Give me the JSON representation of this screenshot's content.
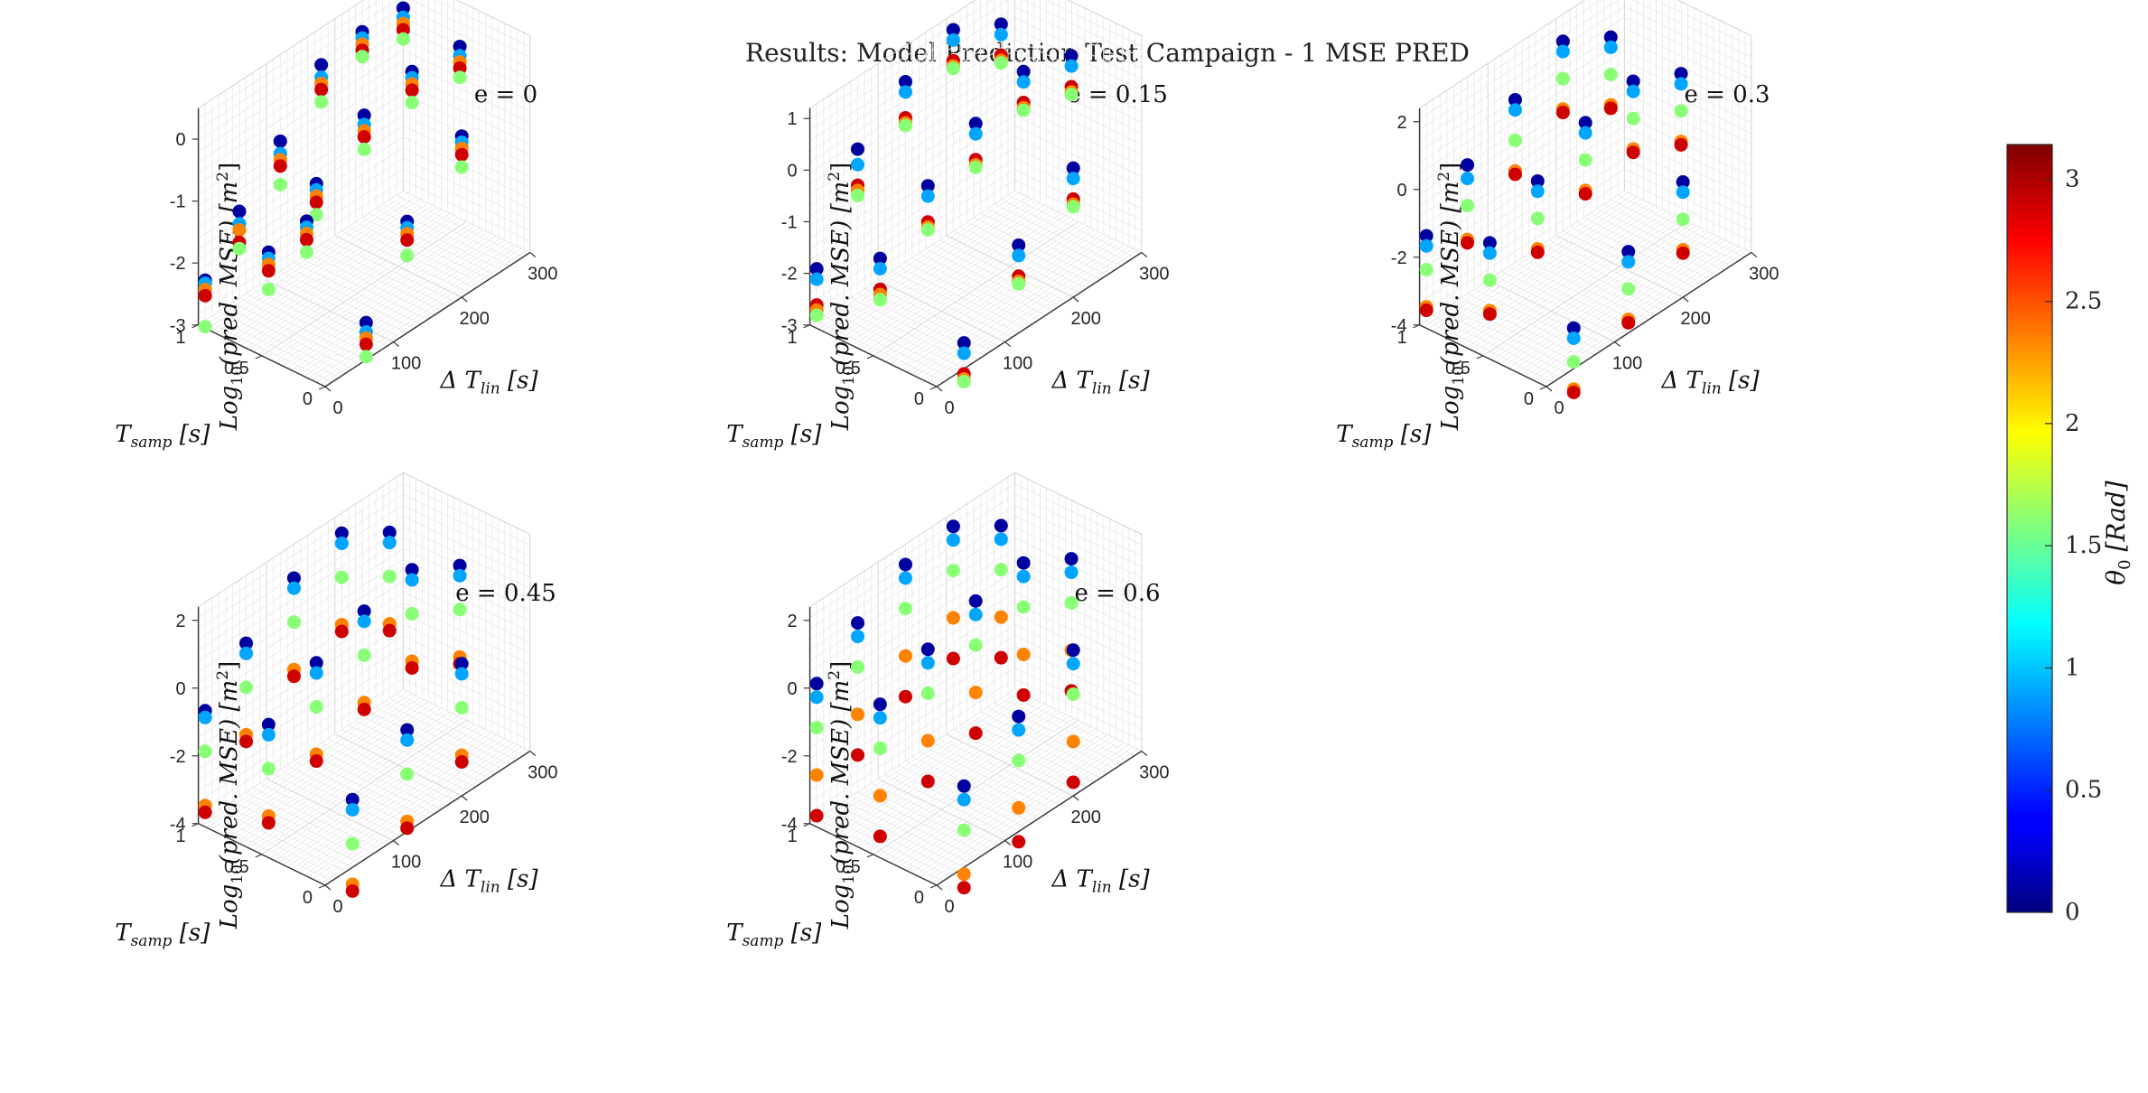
{
  "figure": {
    "title": "Results: Model Prediction Test Campaign - 1 MSE PRED",
    "axis_labels": {
      "z_prefix": "Log",
      "z_sub": "10",
      "z_body": "(pred. MSE) [m",
      "z_sup": "2",
      "z_close": "]",
      "x_prefix": "Δ T",
      "x_sub": "lin",
      "x_suffix": " [s]",
      "y_prefix": "T",
      "y_sub": "samp",
      "y_suffix": " [s]"
    }
  },
  "colorbar": {
    "label_prefix": "θ",
    "label_sub": "0",
    "label_suffix": " [Rad]",
    "ticks": [
      0,
      0.5,
      1,
      1.5,
      2,
      2.5,
      3
    ],
    "tick_labels": [
      "0",
      "0.5",
      "1",
      "1.5",
      "2",
      "2.5",
      "3"
    ],
    "range": [
      0,
      3.1416
    ],
    "colormap": "jet"
  },
  "chart_data": [
    {
      "type": "scatter3d",
      "title": "e = 0",
      "xlim": [
        0,
        300
      ],
      "ylim": [
        0,
        1
      ],
      "zlim": [
        -3,
        0.5
      ],
      "xticks": [
        0,
        100,
        200,
        300
      ],
      "xtick_labels": [
        "0",
        "100",
        "200",
        "300"
      ],
      "yticks": [
        0,
        0.5,
        1
      ],
      "ytick_labels": [
        "0",
        "0.5",
        "1"
      ],
      "zticks": [
        -3,
        -2,
        -1,
        0
      ],
      "ztick_labels": [
        "-3",
        "-2",
        "-1",
        "0"
      ],
      "grid": true,
      "groups": [
        {
          "x": 10,
          "y": 1.0,
          "z": [
            -2.35,
            -2.4,
            -2.5,
            -2.6,
            -3.1
          ]
        },
        {
          "x": 60,
          "y": 1.0,
          "z": [
            -1.6,
            -1.8,
            -1.9,
            -2.1,
            -2.2
          ]
        },
        {
          "x": 120,
          "y": 1.0,
          "z": [
            -0.9,
            -1.1,
            -1.2,
            -1.3,
            -1.6
          ]
        },
        {
          "x": 180,
          "y": 1.0,
          "z": [
            -0.1,
            -0.3,
            -0.4,
            -0.5,
            -0.7
          ]
        },
        {
          "x": 240,
          "y": 1.0,
          "z": [
            0.0,
            -0.1,
            -0.2,
            -0.3,
            -0.4
          ]
        },
        {
          "x": 300,
          "y": 1.0,
          "z": [
            -0.05,
            -0.2,
            -0.3,
            -0.4,
            -0.55
          ]
        },
        {
          "x": 10,
          "y": 0.5,
          "z": [
            -1.4,
            -1.5,
            -1.6,
            -1.7,
            -2.0
          ]
        },
        {
          "x": 80,
          "y": 0.5,
          "z": [
            -0.8,
            -0.9,
            -1.0,
            -1.1,
            -1.3
          ]
        },
        {
          "x": 150,
          "y": 0.5,
          "z": [
            -0.2,
            -0.35,
            -0.45,
            -0.55,
            -0.75
          ]
        },
        {
          "x": 220,
          "y": 0.5,
          "z": [
            0.0,
            -0.1,
            -0.2,
            -0.3,
            -0.5
          ]
        },
        {
          "x": 290,
          "y": 0.5,
          "z": [
            -0.1,
            -0.25,
            -0.35,
            -0.45,
            -0.6
          ]
        },
        {
          "x": 10,
          "y": 0.2,
          "z": [
            -0.6,
            -0.7,
            -0.8,
            -0.9,
            -1.1
          ]
        },
        {
          "x": 60,
          "y": 0.0,
          "z": [
            -2.4,
            -2.55,
            -2.65,
            -2.75,
            -2.95
          ]
        },
        {
          "x": 120,
          "y": 0.0,
          "z": [
            -1.2,
            -1.3,
            -1.4,
            -1.5,
            -1.75
          ]
        },
        {
          "x": 200,
          "y": 0.0,
          "z": [
            -0.4,
            -0.5,
            -0.6,
            -0.7,
            -0.9
          ]
        }
      ],
      "theta_levels": [
        0.1,
        0.9,
        2.35,
        2.9,
        1.6
      ]
    },
    {
      "type": "scatter3d",
      "title": "e = 0.15",
      "xlim": [
        0,
        300
      ],
      "ylim": [
        0,
        1
      ],
      "zlim": [
        -3,
        1.2
      ],
      "xticks": [
        0,
        100,
        200,
        300
      ],
      "xtick_labels": [
        "0",
        "100",
        "200",
        "300"
      ],
      "yticks": [
        0,
        0.5,
        1
      ],
      "ytick_labels": [
        "0",
        "0.5",
        "1"
      ],
      "zticks": [
        -3,
        -2,
        -1,
        0,
        1
      ],
      "ztick_labels": [
        "-3",
        "-2",
        "-1",
        "0",
        "1"
      ],
      "grid": true,
      "groups": [
        {
          "x": 10,
          "y": 1.0,
          "z": [
            -2.0,
            -2.2,
            -2.7,
            -2.8,
            -2.9
          ]
        },
        {
          "x": 70,
          "y": 1.0,
          "z": [
            -0.2,
            -0.5,
            -0.9,
            -1.0,
            -1.1
          ]
        },
        {
          "x": 140,
          "y": 1.0,
          "z": [
            0.5,
            0.3,
            -0.2,
            -0.3,
            -0.35
          ]
        },
        {
          "x": 210,
          "y": 1.0,
          "z": [
            0.9,
            0.7,
            0.3,
            0.2,
            0.15
          ]
        },
        {
          "x": 280,
          "y": 1.0,
          "z": [
            0.4,
            0.2,
            -0.2,
            -0.3,
            -0.35
          ]
        },
        {
          "x": 10,
          "y": 0.5,
          "z": [
            -1.2,
            -1.4,
            -1.8,
            -1.9,
            -2.0
          ]
        },
        {
          "x": 80,
          "y": 0.5,
          "z": [
            -0.4,
            -0.6,
            -1.1,
            -1.2,
            -1.25
          ]
        },
        {
          "x": 150,
          "y": 0.5,
          "z": [
            0.2,
            0.0,
            -0.5,
            -0.6,
            -0.65
          ]
        },
        {
          "x": 220,
          "y": 0.5,
          "z": [
            0.6,
            0.4,
            0.0,
            -0.1,
            -0.15
          ]
        },
        {
          "x": 290,
          "y": 0.5,
          "z": [
            0.3,
            0.1,
            -0.3,
            -0.4,
            -0.45
          ]
        },
        {
          "x": 40,
          "y": 0.0,
          "z": [
            -2.5,
            -2.7,
            -3.1,
            -3.2,
            -3.25
          ]
        },
        {
          "x": 120,
          "y": 0.0,
          "z": [
            -1.3,
            -1.5,
            -1.9,
            -2.0,
            -2.05
          ]
        },
        {
          "x": 200,
          "y": 0.0,
          "z": [
            -0.5,
            -0.7,
            -1.1,
            -1.2,
            -1.25
          ]
        }
      ],
      "theta_levels": [
        0.1,
        0.9,
        2.9,
        2.35,
        1.6
      ]
    },
    {
      "type": "scatter3d",
      "title": "e = 0.3",
      "xlim": [
        0,
        300
      ],
      "ylim": [
        0,
        1
      ],
      "zlim": [
        -4,
        2.4
      ],
      "xticks": [
        0,
        100,
        200,
        300
      ],
      "xtick_labels": [
        "0",
        "100",
        "200",
        "300"
      ],
      "yticks": [
        0,
        0.5,
        1
      ],
      "ytick_labels": [
        "0",
        "0.5",
        "1"
      ],
      "zticks": [
        -4,
        -2,
        0,
        2
      ],
      "ztick_labels": [
        "-4",
        "-2",
        "0",
        "2"
      ],
      "grid": true,
      "groups": [
        {
          "x": 10,
          "y": 1.0,
          "z": [
            -1.5,
            -1.8,
            -2.5,
            -3.6,
            -3.7
          ]
        },
        {
          "x": 70,
          "y": 1.0,
          "z": [
            -0.2,
            -0.6,
            -1.4,
            -2.4,
            -2.5
          ]
        },
        {
          "x": 140,
          "y": 1.0,
          "z": [
            0.8,
            0.5,
            -0.4,
            -1.3,
            -1.4
          ]
        },
        {
          "x": 210,
          "y": 1.0,
          "z": [
            1.6,
            1.3,
            0.5,
            -0.4,
            -0.5
          ]
        },
        {
          "x": 280,
          "y": 1.0,
          "z": [
            0.8,
            0.5,
            -0.3,
            -1.2,
            -1.3
          ]
        },
        {
          "x": 10,
          "y": 0.5,
          "z": [
            -0.8,
            -1.1,
            -1.9,
            -2.8,
            -2.9
          ]
        },
        {
          "x": 80,
          "y": 0.5,
          "z": [
            0.1,
            -0.2,
            -1.0,
            -1.9,
            -2.0
          ]
        },
        {
          "x": 150,
          "y": 0.5,
          "z": [
            0.9,
            0.6,
            -0.2,
            -1.1,
            -1.2
          ]
        },
        {
          "x": 220,
          "y": 0.5,
          "z": [
            1.2,
            0.9,
            0.1,
            -0.8,
            -0.9
          ]
        },
        {
          "x": 290,
          "y": 0.5,
          "z": [
            0.5,
            0.2,
            -0.6,
            -1.5,
            -1.6
          ]
        },
        {
          "x": 40,
          "y": 0.0,
          "z": [
            -2.8,
            -3.1,
            -3.8,
            -4.6,
            -4.7
          ]
        },
        {
          "x": 120,
          "y": 0.0,
          "z": [
            -1.6,
            -1.9,
            -2.7,
            -3.6,
            -3.7
          ]
        },
        {
          "x": 200,
          "y": 0.0,
          "z": [
            -0.6,
            -0.9,
            -1.7,
            -2.6,
            -2.7
          ]
        }
      ],
      "theta_levels": [
        0.1,
        0.9,
        1.6,
        2.35,
        2.9
      ]
    },
    {
      "type": "scatter3d",
      "title": "e = 0.45",
      "xlim": [
        0,
        300
      ],
      "ylim": [
        0,
        1
      ],
      "zlim": [
        -4,
        2.4
      ],
      "xticks": [
        0,
        100,
        200,
        300
      ],
      "xtick_labels": [
        "0",
        "100",
        "200",
        "300"
      ],
      "yticks": [
        0,
        0.5,
        1
      ],
      "ytick_labels": [
        "0",
        "0.5",
        "1"
      ],
      "zticks": [
        -4,
        -2,
        0,
        2
      ],
      "ztick_labels": [
        "-4",
        "-2",
        "0",
        "2"
      ],
      "grid": true,
      "groups": [
        {
          "x": 10,
          "y": 1.0,
          "z": [
            -0.8,
            -1.0,
            -2.0,
            -3.6,
            -3.8
          ]
        },
        {
          "x": 70,
          "y": 1.0,
          "z": [
            0.4,
            0.1,
            -0.9,
            -2.3,
            -2.5
          ]
        },
        {
          "x": 140,
          "y": 1.0,
          "z": [
            1.4,
            1.1,
            0.1,
            -1.3,
            -1.5
          ]
        },
        {
          "x": 210,
          "y": 1.0,
          "z": [
            1.8,
            1.5,
            0.5,
            -0.9,
            -1.1
          ]
        },
        {
          "x": 280,
          "y": 1.0,
          "z": [
            0.9,
            0.6,
            -0.4,
            -1.8,
            -2.0
          ]
        },
        {
          "x": 10,
          "y": 0.5,
          "z": [
            -0.3,
            -0.6,
            -1.6,
            -3.0,
            -3.2
          ]
        },
        {
          "x": 80,
          "y": 0.5,
          "z": [
            0.6,
            0.3,
            -0.7,
            -2.1,
            -2.3
          ]
        },
        {
          "x": 150,
          "y": 0.5,
          "z": [
            1.2,
            0.9,
            -0.1,
            -1.5,
            -1.7
          ]
        },
        {
          "x": 220,
          "y": 0.5,
          "z": [
            1.5,
            1.2,
            0.2,
            -1.2,
            -1.4
          ]
        },
        {
          "x": 290,
          "y": 0.5,
          "z": [
            0.7,
            0.4,
            -0.6,
            -2.0,
            -2.2
          ]
        },
        {
          "x": 40,
          "y": 0.0,
          "z": [
            -2.0,
            -2.3,
            -3.3,
            -4.5,
            -4.7
          ]
        },
        {
          "x": 120,
          "y": 0.0,
          "z": [
            -1.0,
            -1.3,
            -2.3,
            -3.7,
            -3.9
          ]
        },
        {
          "x": 200,
          "y": 0.0,
          "z": [
            -0.1,
            -0.4,
            -1.4,
            -2.8,
            -3.0
          ]
        }
      ],
      "theta_levels": [
        0.1,
        0.9,
        1.6,
        2.35,
        2.9
      ]
    },
    {
      "type": "scatter3d",
      "title": "e = 0.6",
      "xlim": [
        0,
        300
      ],
      "ylim": [
        0,
        1
      ],
      "zlim": [
        -4,
        2.4
      ],
      "xticks": [
        0,
        100,
        200,
        300
      ],
      "xtick_labels": [
        "0",
        "100",
        "200",
        "300"
      ],
      "yticks": [
        0,
        0.5,
        1
      ],
      "ytick_labels": [
        "0",
        "0.5",
        "1"
      ],
      "zticks": [
        -4,
        -2,
        0,
        2
      ],
      "ztick_labels": [
        "-4",
        "-2",
        "0",
        "2"
      ],
      "grid": true,
      "groups": [
        {
          "x": 10,
          "y": 1.0,
          "z": [
            0.0,
            -0.4,
            -1.3,
            -2.7,
            -3.9
          ]
        },
        {
          "x": 70,
          "y": 1.0,
          "z": [
            1.0,
            0.6,
            -0.3,
            -1.7,
            -2.9
          ]
        },
        {
          "x": 140,
          "y": 1.0,
          "z": [
            1.8,
            1.4,
            0.5,
            -0.9,
            -2.1
          ]
        },
        {
          "x": 210,
          "y": 1.0,
          "z": [
            2.0,
            1.6,
            0.7,
            -0.7,
            -1.9
          ]
        },
        {
          "x": 280,
          "y": 1.0,
          "z": [
            1.1,
            0.7,
            -0.2,
            -1.6,
            -2.8
          ]
        },
        {
          "x": 10,
          "y": 0.5,
          "z": [
            0.3,
            -0.1,
            -1.0,
            -2.4,
            -3.6
          ]
        },
        {
          "x": 80,
          "y": 0.5,
          "z": [
            1.0,
            0.6,
            -0.3,
            -1.7,
            -2.9
          ]
        },
        {
          "x": 150,
          "y": 0.5,
          "z": [
            1.5,
            1.1,
            0.2,
            -1.2,
            -2.4
          ]
        },
        {
          "x": 220,
          "y": 0.5,
          "z": [
            1.7,
            1.3,
            0.4,
            -1.0,
            -2.2
          ]
        },
        {
          "x": 290,
          "y": 0.5,
          "z": [
            0.9,
            0.5,
            -0.4,
            -1.8,
            -3.0
          ]
        },
        {
          "x": 40,
          "y": 0.0,
          "z": [
            -1.6,
            -2.0,
            -2.9,
            -4.2,
            -4.6
          ]
        },
        {
          "x": 120,
          "y": 0.0,
          "z": [
            -0.6,
            -1.0,
            -1.9,
            -3.3,
            -4.3
          ]
        },
        {
          "x": 200,
          "y": 0.0,
          "z": [
            0.3,
            -0.1,
            -1.0,
            -2.4,
            -3.6
          ]
        }
      ],
      "theta_levels": [
        0.1,
        0.9,
        1.6,
        2.35,
        2.9
      ]
    }
  ]
}
